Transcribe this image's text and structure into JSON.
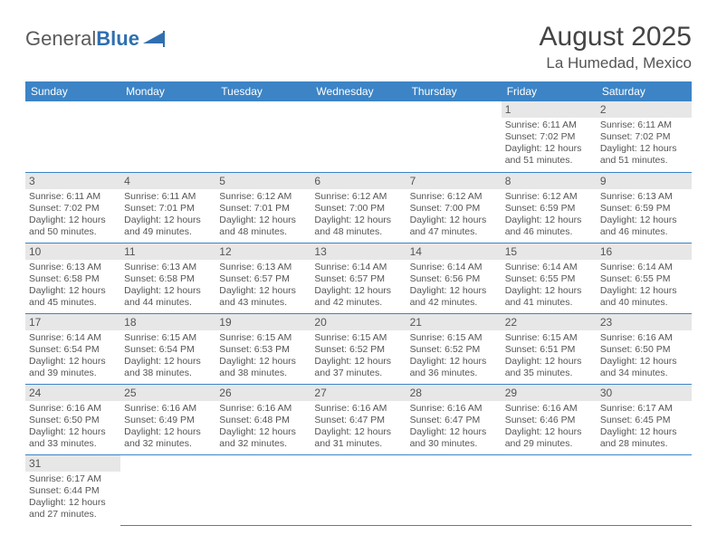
{
  "logo": {
    "part1": "General",
    "part2": "Blue"
  },
  "title": "August 2025",
  "location": "La Humedad, Mexico",
  "colors": {
    "header_bg": "#3c84c6",
    "header_text": "#ffffff",
    "daynum_bg": "#e7e7e7",
    "cell_border": "#3c84c6",
    "text": "#555555",
    "logo_gray": "#5a5a5a",
    "logo_blue": "#2f6fb0"
  },
  "dayHeaders": [
    "Sunday",
    "Monday",
    "Tuesday",
    "Wednesday",
    "Thursday",
    "Friday",
    "Saturday"
  ],
  "weeks": [
    [
      null,
      null,
      null,
      null,
      null,
      {
        "n": "1",
        "sr": "6:11 AM",
        "ss": "7:02 PM",
        "dl": "12 hours and 51 minutes."
      },
      {
        "n": "2",
        "sr": "6:11 AM",
        "ss": "7:02 PM",
        "dl": "12 hours and 51 minutes."
      }
    ],
    [
      {
        "n": "3",
        "sr": "6:11 AM",
        "ss": "7:02 PM",
        "dl": "12 hours and 50 minutes."
      },
      {
        "n": "4",
        "sr": "6:11 AM",
        "ss": "7:01 PM",
        "dl": "12 hours and 49 minutes."
      },
      {
        "n": "5",
        "sr": "6:12 AM",
        "ss": "7:01 PM",
        "dl": "12 hours and 48 minutes."
      },
      {
        "n": "6",
        "sr": "6:12 AM",
        "ss": "7:00 PM",
        "dl": "12 hours and 48 minutes."
      },
      {
        "n": "7",
        "sr": "6:12 AM",
        "ss": "7:00 PM",
        "dl": "12 hours and 47 minutes."
      },
      {
        "n": "8",
        "sr": "6:12 AM",
        "ss": "6:59 PM",
        "dl": "12 hours and 46 minutes."
      },
      {
        "n": "9",
        "sr": "6:13 AM",
        "ss": "6:59 PM",
        "dl": "12 hours and 46 minutes."
      }
    ],
    [
      {
        "n": "10",
        "sr": "6:13 AM",
        "ss": "6:58 PM",
        "dl": "12 hours and 45 minutes."
      },
      {
        "n": "11",
        "sr": "6:13 AM",
        "ss": "6:58 PM",
        "dl": "12 hours and 44 minutes."
      },
      {
        "n": "12",
        "sr": "6:13 AM",
        "ss": "6:57 PM",
        "dl": "12 hours and 43 minutes."
      },
      {
        "n": "13",
        "sr": "6:14 AM",
        "ss": "6:57 PM",
        "dl": "12 hours and 42 minutes."
      },
      {
        "n": "14",
        "sr": "6:14 AM",
        "ss": "6:56 PM",
        "dl": "12 hours and 42 minutes."
      },
      {
        "n": "15",
        "sr": "6:14 AM",
        "ss": "6:55 PM",
        "dl": "12 hours and 41 minutes."
      },
      {
        "n": "16",
        "sr": "6:14 AM",
        "ss": "6:55 PM",
        "dl": "12 hours and 40 minutes."
      }
    ],
    [
      {
        "n": "17",
        "sr": "6:14 AM",
        "ss": "6:54 PM",
        "dl": "12 hours and 39 minutes."
      },
      {
        "n": "18",
        "sr": "6:15 AM",
        "ss": "6:54 PM",
        "dl": "12 hours and 38 minutes."
      },
      {
        "n": "19",
        "sr": "6:15 AM",
        "ss": "6:53 PM",
        "dl": "12 hours and 38 minutes."
      },
      {
        "n": "20",
        "sr": "6:15 AM",
        "ss": "6:52 PM",
        "dl": "12 hours and 37 minutes."
      },
      {
        "n": "21",
        "sr": "6:15 AM",
        "ss": "6:52 PM",
        "dl": "12 hours and 36 minutes."
      },
      {
        "n": "22",
        "sr": "6:15 AM",
        "ss": "6:51 PM",
        "dl": "12 hours and 35 minutes."
      },
      {
        "n": "23",
        "sr": "6:16 AM",
        "ss": "6:50 PM",
        "dl": "12 hours and 34 minutes."
      }
    ],
    [
      {
        "n": "24",
        "sr": "6:16 AM",
        "ss": "6:50 PM",
        "dl": "12 hours and 33 minutes."
      },
      {
        "n": "25",
        "sr": "6:16 AM",
        "ss": "6:49 PM",
        "dl": "12 hours and 32 minutes."
      },
      {
        "n": "26",
        "sr": "6:16 AM",
        "ss": "6:48 PM",
        "dl": "12 hours and 32 minutes."
      },
      {
        "n": "27",
        "sr": "6:16 AM",
        "ss": "6:47 PM",
        "dl": "12 hours and 31 minutes."
      },
      {
        "n": "28",
        "sr": "6:16 AM",
        "ss": "6:47 PM",
        "dl": "12 hours and 30 minutes."
      },
      {
        "n": "29",
        "sr": "6:16 AM",
        "ss": "6:46 PM",
        "dl": "12 hours and 29 minutes."
      },
      {
        "n": "30",
        "sr": "6:17 AM",
        "ss": "6:45 PM",
        "dl": "12 hours and 28 minutes."
      }
    ],
    [
      {
        "n": "31",
        "sr": "6:17 AM",
        "ss": "6:44 PM",
        "dl": "12 hours and 27 minutes."
      },
      null,
      null,
      null,
      null,
      null,
      null
    ]
  ],
  "labels": {
    "sunrise": "Sunrise: ",
    "sunset": "Sunset: ",
    "daylight": "Daylight: "
  }
}
